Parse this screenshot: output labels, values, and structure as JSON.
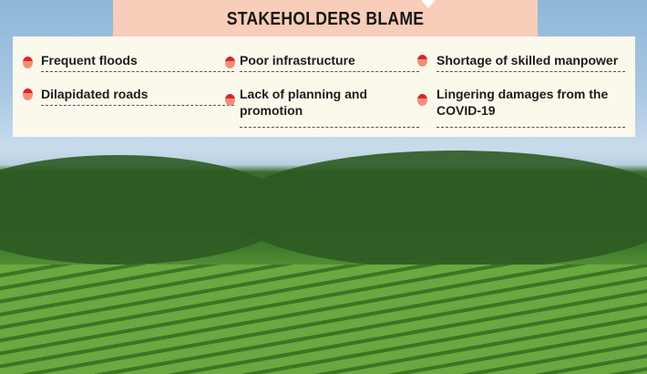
{
  "title": "STAKEHOLDERS BLAME",
  "items": [
    "Frequent floods",
    "Poor infrastructure",
    "Shortage of skilled manpower",
    "Dilapidated roads",
    "Lack of planning and promotion",
    "Lingering damages from the COVID-19"
  ],
  "colors": {
    "header": "#f8cdb9",
    "panel": "#fbf9ec",
    "bullet_top": "#d8262a",
    "bullet_bottom": "#f28f74"
  },
  "icons": {
    "bullet": "red-dot-icon"
  }
}
